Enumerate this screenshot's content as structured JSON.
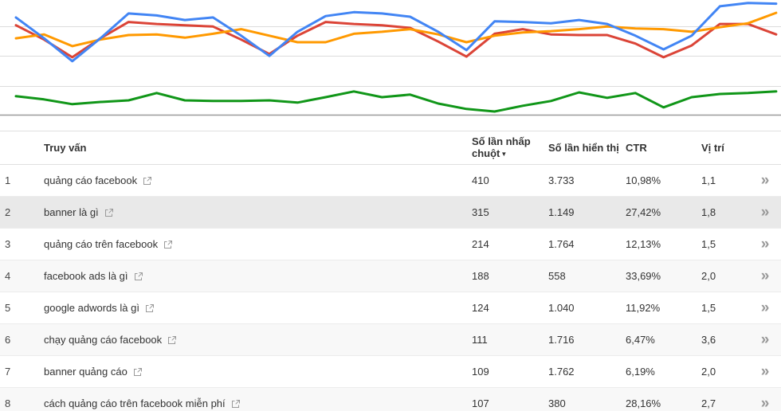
{
  "chart_data": [
    {
      "type": "line",
      "title": "",
      "xlabel": "",
      "ylabel": "",
      "ylim": [
        0,
        100
      ],
      "grid": true,
      "legend": false,
      "series": [
        {
          "name": "red",
          "color": "#db4437",
          "values": [
            65,
            43,
            16,
            45,
            70,
            67,
            65,
            63,
            43,
            21,
            49,
            70,
            67,
            65,
            61,
            40,
            17,
            52,
            59,
            51,
            50,
            50,
            37,
            16,
            34,
            67,
            67,
            51
          ]
        },
        {
          "name": "orange",
          "color": "#ff9900",
          "values": [
            45,
            51,
            33,
            43,
            50,
            51,
            46,
            52,
            59,
            49,
            39,
            39,
            52,
            55,
            59,
            51,
            39,
            49,
            54,
            56,
            59,
            63,
            60,
            59,
            55,
            62,
            68,
            84
          ]
        },
        {
          "name": "blue",
          "color": "#4285f4",
          "values": [
            77,
            45,
            10,
            45,
            83,
            80,
            73,
            77,
            49,
            18,
            55,
            79,
            85,
            83,
            78,
            55,
            27,
            71,
            70,
            68,
            73,
            67,
            49,
            28,
            49,
            94,
            99,
            98
          ]
        }
      ]
    },
    {
      "type": "line",
      "title": "",
      "xlabel": "",
      "ylabel": "",
      "ylim": [
        0,
        100
      ],
      "grid": true,
      "legend": false,
      "series": [
        {
          "name": "green",
          "color": "#109618",
          "values": [
            58,
            48,
            33,
            40,
            45,
            68,
            45,
            43,
            43,
            45,
            38,
            55,
            73,
            55,
            63,
            35,
            18,
            10,
            28,
            43,
            70,
            53,
            68,
            23,
            55,
            65,
            68,
            73
          ]
        }
      ]
    }
  ],
  "table": {
    "header": {
      "query": "Truy vấn",
      "clicks": "Số lần nhấp chuột",
      "sort_indicator": "▼",
      "impressions": "Số lần hiển thị",
      "ctr": "CTR",
      "position": "Vị trí"
    },
    "expand_chevron": "»",
    "rows": [
      {
        "index": "1",
        "query": "quảng cáo facebook",
        "clicks": "410",
        "impressions": "3.733",
        "ctr": "10,98%",
        "position": "1,1"
      },
      {
        "index": "2",
        "query": "banner là gì",
        "clicks": "315",
        "impressions": "1.149",
        "ctr": "27,42%",
        "position": "1,8",
        "highlighted": true
      },
      {
        "index": "3",
        "query": "quảng cáo trên facebook",
        "clicks": "214",
        "impressions": "1.764",
        "ctr": "12,13%",
        "position": "1,5"
      },
      {
        "index": "4",
        "query": "facebook ads là gì",
        "clicks": "188",
        "impressions": "558",
        "ctr": "33,69%",
        "position": "2,0"
      },
      {
        "index": "5",
        "query": "google adwords là gì",
        "clicks": "124",
        "impressions": "1.040",
        "ctr": "11,92%",
        "position": "1,5"
      },
      {
        "index": "6",
        "query": "chạy quảng cáo facebook",
        "clicks": "111",
        "impressions": "1.716",
        "ctr": "6,47%",
        "position": "3,6"
      },
      {
        "index": "7",
        "query": "banner quảng cáo",
        "clicks": "109",
        "impressions": "1.762",
        "ctr": "6,19%",
        "position": "2,0"
      },
      {
        "index": "8",
        "query": "cách quảng cáo trên facebook miễn phí",
        "clicks": "107",
        "impressions": "380",
        "ctr": "28,16%",
        "position": "2,7"
      }
    ]
  }
}
